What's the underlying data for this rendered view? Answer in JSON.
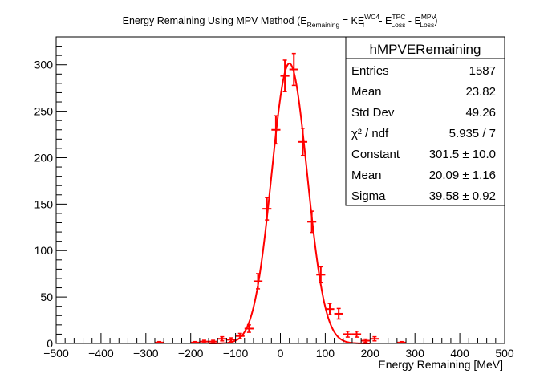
{
  "chart_data": {
    "type": "scatter",
    "title": {
      "prefix": "Energy Remaining Using MPV Method (E",
      "sub_remaining": "Remaining",
      "eq": " = KE",
      "sup_wc4": "WC4",
      "sub_i": "i",
      "minus1": " - E",
      "sup_tpc": "TPC",
      "sub_loss1": "Loss",
      "minus2": " - E",
      "sup_mpv": "MPV",
      "sub_loss2": "Loss",
      "close": ")"
    },
    "xlabel": "Energy Remaining [MeV]",
    "ylabel": "",
    "xlim": [
      -500,
      500
    ],
    "ylim": [
      0,
      330
    ],
    "x_ticks": [
      -500,
      -400,
      -300,
      -200,
      -100,
      0,
      100,
      200,
      300,
      400,
      500
    ],
    "x_tick_labels": [
      "−500",
      "−400",
      "−300",
      "−200",
      "−100",
      "0",
      "100",
      "200",
      "300",
      "400",
      "500"
    ],
    "y_ticks": [
      0,
      50,
      100,
      150,
      200,
      250,
      300
    ],
    "y_tick_labels": [
      "0",
      "50",
      "100",
      "150",
      "200",
      "250",
      "300"
    ],
    "grid": false,
    "bin_width": 20,
    "marker_color": "#ff0000",
    "fit_color": "#ff0000",
    "series": [
      {
        "x": [
          -270,
          -190,
          -170,
          -150,
          -130,
          -110,
          -90,
          -70,
          -50,
          -30,
          -10,
          10,
          30,
          50,
          70,
          90,
          110,
          130,
          150,
          170,
          190,
          210,
          270
        ],
        "y": [
          1,
          1,
          2,
          2,
          5,
          4,
          8,
          16,
          67,
          145,
          230,
          288,
          295,
          217,
          131,
          74,
          37,
          32,
          10,
          10,
          3,
          5,
          1
        ]
      }
    ],
    "fit": {
      "type": "gaussian",
      "constant": 301.5,
      "mean": 20.09,
      "sigma": 39.58
    }
  },
  "stats_box": {
    "name": "hMPVERemaining",
    "rows": [
      {
        "label": "Entries",
        "value": "1587"
      },
      {
        "label": "Mean",
        "value": "23.82"
      },
      {
        "label": "Std Dev",
        "value": "49.26"
      },
      {
        "label": "χ² / ndf",
        "value": "5.935 / 7"
      },
      {
        "label": "Constant",
        "value": "301.5 ± 10.0"
      },
      {
        "label": "Mean",
        "value": "20.09 ± 1.16"
      },
      {
        "label": "Sigma",
        "value": "39.58 ± 0.92"
      }
    ]
  }
}
